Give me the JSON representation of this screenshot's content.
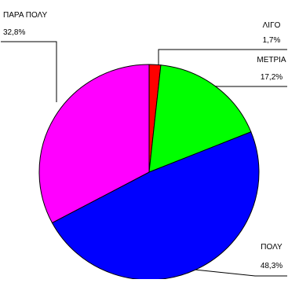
{
  "chart_data": {
    "type": "pie",
    "title": "",
    "slices": [
      {
        "label": "ΛΙΓΟ",
        "value": 1.7,
        "value_label": "1,7%",
        "color": "#ff0000",
        "label_side": "right"
      },
      {
        "label": "ΜΕΤΡΙΑ",
        "value": 17.2,
        "value_label": "17,2%",
        "color": "#00ff00",
        "label_side": "right"
      },
      {
        "label": "ΠΟΛΥ",
        "value": 48.3,
        "value_label": "48,3%",
        "color": "#0000ff",
        "label_side": "right"
      },
      {
        "label": "ΠΑΡΑ ΠΟΛΥ",
        "value": 32.8,
        "value_label": "32,8%",
        "color": "#ff00ff",
        "label_side": "left"
      }
    ],
    "start_angle_deg": 0,
    "direction": "clockwise",
    "legend": "none"
  }
}
